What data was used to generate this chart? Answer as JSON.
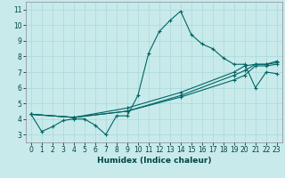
{
  "xlabel": "Humidex (Indice chaleur)",
  "xlim": [
    -0.5,
    23.5
  ],
  "ylim": [
    2.5,
    11.5
  ],
  "xticks": [
    0,
    1,
    2,
    3,
    4,
    5,
    6,
    7,
    8,
    9,
    10,
    11,
    12,
    13,
    14,
    15,
    16,
    17,
    18,
    19,
    20,
    21,
    22,
    23
  ],
  "yticks": [
    3,
    4,
    5,
    6,
    7,
    8,
    9,
    10,
    11
  ],
  "bg_color": "#c8eaea",
  "line_color": "#006666",
  "grid_color": "#aad8d8",
  "series": [
    {
      "x": [
        0,
        1,
        2,
        3,
        4,
        5,
        6,
        7,
        8,
        9,
        10,
        11,
        12,
        13,
        14,
        15,
        16,
        17,
        18,
        19,
        20,
        21,
        22,
        23
      ],
      "y": [
        4.3,
        3.2,
        3.5,
        3.9,
        4.0,
        4.0,
        3.6,
        3.0,
        4.2,
        4.2,
        5.5,
        8.2,
        9.6,
        10.3,
        10.9,
        9.4,
        8.8,
        8.5,
        7.9,
        7.5,
        7.5,
        6.0,
        7.0,
        6.9
      ]
    },
    {
      "x": [
        0,
        4,
        9,
        14,
        19,
        20,
        21,
        22,
        23
      ],
      "y": [
        4.3,
        4.1,
        4.5,
        5.4,
        6.5,
        6.8,
        7.4,
        7.4,
        7.5
      ]
    },
    {
      "x": [
        0,
        4,
        9,
        14,
        19,
        20,
        21,
        22,
        23
      ],
      "y": [
        4.3,
        4.1,
        4.5,
        5.5,
        6.8,
        7.1,
        7.5,
        7.5,
        7.6
      ]
    },
    {
      "x": [
        0,
        4,
        9,
        14,
        19,
        20,
        21,
        22,
        23
      ],
      "y": [
        4.3,
        4.1,
        4.7,
        5.7,
        7.0,
        7.4,
        7.5,
        7.5,
        7.7
      ]
    }
  ]
}
